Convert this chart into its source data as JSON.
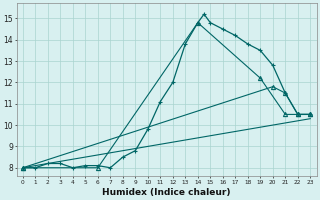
{
  "xlabel": "Humidex (Indice chaleur)",
  "bg_color": "#d8f0f0",
  "line_color": "#006666",
  "grid_color": "#aad4d0",
  "xlim": [
    -0.5,
    23.5
  ],
  "ylim": [
    7.6,
    15.7
  ],
  "xticks": [
    0,
    1,
    2,
    3,
    4,
    5,
    6,
    7,
    8,
    9,
    10,
    11,
    12,
    13,
    14,
    15,
    16,
    17,
    18,
    19,
    20,
    21,
    22,
    23
  ],
  "yticks": [
    8,
    9,
    10,
    11,
    12,
    13,
    14,
    15
  ],
  "series": [
    {
      "x": [
        0,
        1,
        2,
        3,
        4,
        5,
        6,
        7,
        8,
        9,
        10,
        11,
        12,
        13,
        14,
        14.5,
        15,
        16,
        17,
        18,
        19,
        20,
        21,
        22,
        23
      ],
      "y": [
        8.0,
        8.0,
        8.2,
        8.2,
        8.0,
        8.1,
        8.1,
        8.0,
        8.5,
        8.8,
        9.8,
        11.1,
        12.0,
        13.8,
        14.8,
        15.2,
        14.8,
        14.5,
        14.2,
        13.8,
        13.5,
        12.8,
        11.5,
        10.5,
        10.5
      ],
      "marker": "+",
      "markersize": 3,
      "linewidth": 0.9
    },
    {
      "x": [
        0,
        6,
        14,
        19,
        21,
        22,
        23
      ],
      "y": [
        8.0,
        8.0,
        14.8,
        12.2,
        10.5,
        10.5,
        10.5
      ],
      "marker": "^",
      "markersize": 3,
      "linewidth": 0.8
    },
    {
      "x": [
        0,
        20,
        21,
        22,
        23
      ],
      "y": [
        8.0,
        11.8,
        11.5,
        10.5,
        10.5
      ],
      "marker": "^",
      "markersize": 3,
      "linewidth": 0.8
    },
    {
      "x": [
        0,
        23
      ],
      "y": [
        8.0,
        10.3
      ],
      "marker": null,
      "markersize": 0,
      "linewidth": 0.8
    }
  ]
}
